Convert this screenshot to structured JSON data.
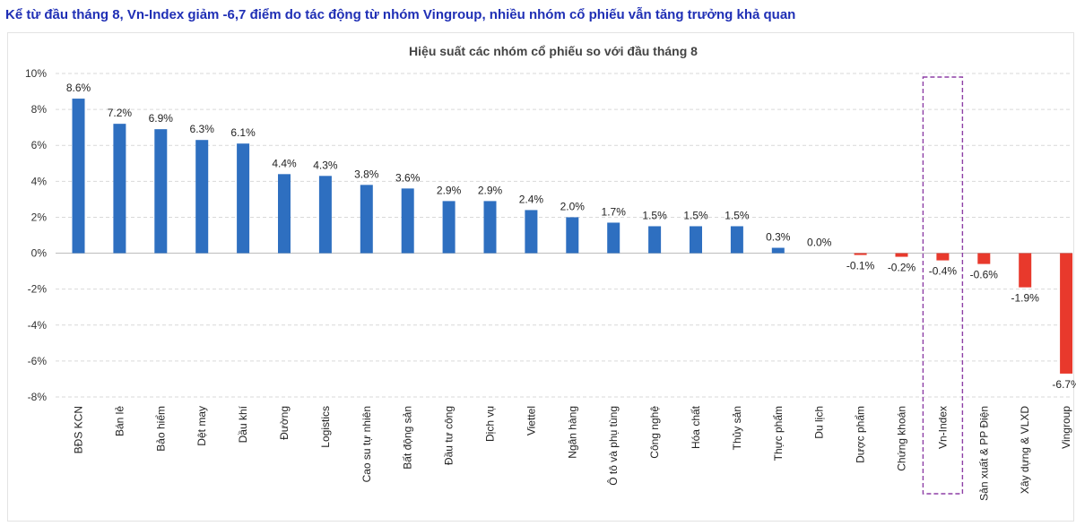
{
  "headline": "Kể từ đầu tháng 8, Vn-Index giảm -6,7 điểm do tác động từ nhóm Vingroup, nhiều nhóm cổ phiếu vẫn tăng trưởng khả quan",
  "chart_data": {
    "type": "bar",
    "title": "Hiệu suất các nhóm cổ phiếu so với đầu tháng 8",
    "xlabel": "",
    "ylabel": "",
    "ylim": [
      -8,
      10
    ],
    "y_ticks": [
      10,
      8,
      6,
      4,
      2,
      0,
      -2,
      -4,
      -6,
      -8
    ],
    "y_tick_labels": [
      "10%",
      "8%",
      "6%",
      "4%",
      "2%",
      "0%",
      "-2%",
      "-4%",
      "-6%",
      "-8%"
    ],
    "grid": "horizontal dashed",
    "highlighted_category": "Vn-Index",
    "colors": {
      "positive": "#2e6fc0",
      "negative": "#e8392c",
      "highlight_box": "#8e3fa6"
    },
    "categories": [
      "BĐS KCN",
      "Bán lẻ",
      "Bảo hiểm",
      "Dệt may",
      "Dầu khí",
      "Đường",
      "Logistics",
      "Cao su tự nhiên",
      "Bất động sản",
      "Đầu tư công",
      "Dịch vụ",
      "Viettel",
      "Ngân hàng",
      "Ô tô và phụ tùng",
      "Công nghệ",
      "Hóa chất",
      "Thủy sản",
      "Thực phẩm",
      "Du lịch",
      "Dược phẩm",
      "Chứng khoán",
      "Vn-Index",
      "Sản xuất & PP Điện",
      "Xây dựng & VLXD",
      "Vingroup"
    ],
    "values": [
      8.6,
      7.2,
      6.9,
      6.3,
      6.1,
      4.4,
      4.3,
      3.8,
      3.6,
      2.9,
      2.9,
      2.4,
      2.0,
      1.7,
      1.5,
      1.5,
      1.5,
      0.3,
      0.0,
      -0.1,
      -0.2,
      -0.4,
      -0.6,
      -1.9,
      -6.7
    ],
    "data_labels": [
      "8.6%",
      "7.2%",
      "6.9%",
      "6.3%",
      "6.1%",
      "4.4%",
      "4.3%",
      "3.8%",
      "3.6%",
      "2.9%",
      "2.9%",
      "2.4%",
      "2.0%",
      "1.7%",
      "1.5%",
      "1.5%",
      "1.5%",
      "0.3%",
      "0.0%",
      "-0.1%",
      "-0.2%",
      "-0.4%",
      "-0.6%",
      "-1.9%",
      "-6.7%"
    ]
  }
}
